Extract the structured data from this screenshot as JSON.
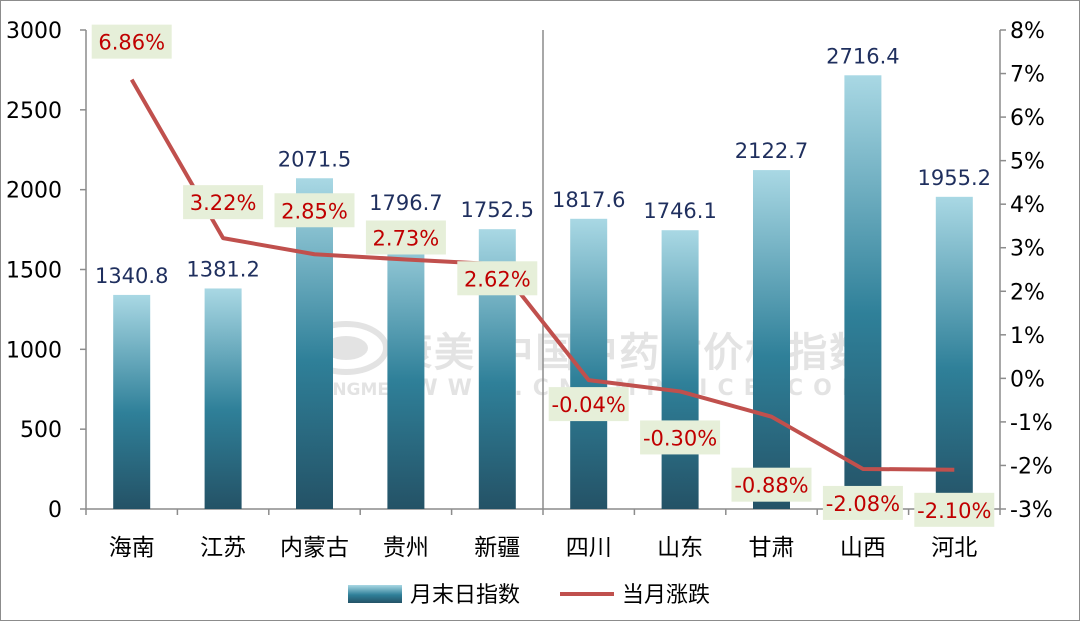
{
  "chart_data": {
    "type": "bar",
    "categories": [
      "海南",
      "江苏",
      "内蒙古",
      "贵州",
      "新疆",
      "四川",
      "山东",
      "甘肃",
      "山西",
      "河北"
    ],
    "series": [
      {
        "name": "月末日指数",
        "type": "bar",
        "axis": "left",
        "values": [
          1340.8,
          1381.2,
          2071.5,
          1796.7,
          1752.5,
          1817.6,
          1746.1,
          2122.7,
          2716.4,
          1955.2
        ],
        "labels": [
          "1340.8",
          "1381.2",
          "2071.5",
          "1796.7",
          "1752.5",
          "1817.6",
          "1746.1",
          "2122.7",
          "2716.4",
          "1955.2"
        ]
      },
      {
        "name": "当月涨跌",
        "type": "line",
        "axis": "right",
        "values": [
          6.86,
          3.22,
          2.85,
          2.73,
          2.62,
          -0.04,
          -0.3,
          -0.88,
          -2.08,
          -2.1
        ],
        "labels": [
          "6.86%",
          "3.22%",
          "2.85%",
          "2.73%",
          "2.62%",
          "-0.04%",
          "-0.30%",
          "-0.88%",
          "-2.08%",
          "-2.10%"
        ]
      }
    ],
    "y_left": {
      "min": 0,
      "max": 3000,
      "ticks": [
        "0",
        "500",
        "1000",
        "1500",
        "2000",
        "2500",
        "3000"
      ]
    },
    "y_right": {
      "min": -3,
      "max": 8,
      "ticks": [
        "-3%",
        "-2%",
        "-1%",
        "0%",
        "1%",
        "2%",
        "3%",
        "4%",
        "5%",
        "6%",
        "7%",
        "8%"
      ]
    },
    "grid": false,
    "divider_after_index": 4,
    "legend_position": "bottom",
    "colors": {
      "bar_top": "#a9d8e4",
      "bar_mid": "#2f8099",
      "bar_bottom": "#245266",
      "line": "#c0504d",
      "bar_label": "#1f2f5e",
      "line_label": "#c00000",
      "line_label_bg": "#e6efd9",
      "axis": "#8c8c8c"
    }
  },
  "watermark": {
    "text_cn": "康美·中国中药材价格指数",
    "text_en": "KANGMEI",
    "text_url": "WWW.CNKMPRICE.COM"
  }
}
